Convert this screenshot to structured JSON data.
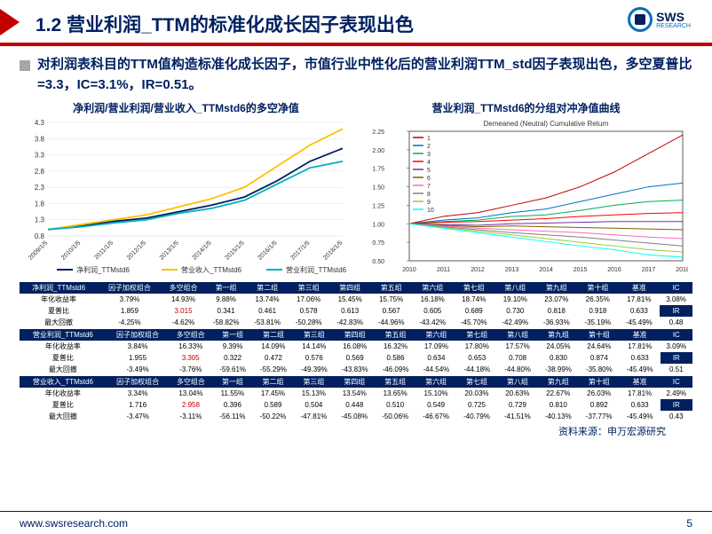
{
  "header": {
    "title": "1.2 营业利润_TTM的标准化成长因子表现出色",
    "logo_main": "SWS",
    "logo_sub": "RESEARCH"
  },
  "bullet": "对利润表科目的TTM值构造标准化成长因子，市值行业中性化后的营业利润TTM_std因子表现出色，多空夏普比=3.3，IC=3.1%，IR=0.51。",
  "chart_left": {
    "title": "净利润/营业利润/营业收入_TTMstd6的多空净值",
    "legend": [
      "净利润_TTMstd6",
      "营业收入_TTMstd6",
      "营业利润_TTMstd6"
    ],
    "legend_colors": [
      "#002060",
      "#ffc000",
      "#00b0c0"
    ],
    "x_labels": [
      "2009/1/5",
      "2010/1/5",
      "2011/1/5",
      "2012/1/5",
      "2013/1/5",
      "2014/1/5",
      "2015/1/5",
      "2016/1/5",
      "2017/1/5",
      "2018/1/5"
    ],
    "y_ticks": [
      0.8,
      1.3,
      1.8,
      2.3,
      2.8,
      3.3,
      3.8,
      4.3
    ],
    "series": [
      {
        "color": "#002060",
        "data": [
          1.0,
          1.1,
          1.25,
          1.35,
          1.55,
          1.75,
          2.0,
          2.5,
          3.1,
          3.5
        ]
      },
      {
        "color": "#ffc000",
        "data": [
          1.0,
          1.15,
          1.3,
          1.45,
          1.7,
          1.95,
          2.3,
          2.95,
          3.6,
          4.1
        ]
      },
      {
        "color": "#00b0c0",
        "data": [
          1.0,
          1.08,
          1.2,
          1.3,
          1.5,
          1.65,
          1.9,
          2.4,
          2.9,
          3.1
        ]
      }
    ]
  },
  "chart_right": {
    "title": "营业利润_TTMstd6的分组对冲净值曲线",
    "legend_title": "Demeaned (Neutral) Cumulative Return",
    "legend_labels": [
      "1",
      "2",
      "3",
      "4",
      "5",
      "6",
      "7",
      "8",
      "9",
      "10"
    ],
    "legend_colors": [
      "#c00000",
      "#0070c0",
      "#00b050",
      "#ff0000",
      "#7030a0",
      "#806000",
      "#ff69b4",
      "#808080",
      "#9acd32",
      "#00ffff"
    ],
    "x_labels": [
      "2010",
      "2011",
      "2012",
      "2013",
      "2014",
      "2015",
      "2016",
      "2017",
      "2018"
    ],
    "y_ticks": [
      0.5,
      0.75,
      1.0,
      1.25,
      1.5,
      1.75,
      2.0,
      2.25
    ],
    "series": [
      {
        "color": "#c00000",
        "data": [
          1.0,
          1.1,
          1.15,
          1.25,
          1.35,
          1.5,
          1.7,
          1.95,
          2.2
        ]
      },
      {
        "color": "#0070c0",
        "data": [
          1.0,
          1.05,
          1.08,
          1.15,
          1.2,
          1.3,
          1.4,
          1.5,
          1.55
        ]
      },
      {
        "color": "#00b050",
        "data": [
          1.0,
          1.03,
          1.05,
          1.1,
          1.12,
          1.18,
          1.25,
          1.3,
          1.32
        ]
      },
      {
        "color": "#ff0000",
        "data": [
          1.0,
          1.02,
          1.03,
          1.05,
          1.07,
          1.1,
          1.12,
          1.14,
          1.15
        ]
      },
      {
        "color": "#7030a0",
        "data": [
          1.0,
          0.99,
          0.98,
          1.0,
          1.01,
          1.02,
          1.03,
          1.03,
          1.03
        ]
      },
      {
        "color": "#806000",
        "data": [
          1.0,
          0.98,
          0.96,
          0.97,
          0.96,
          0.95,
          0.94,
          0.93,
          0.92
        ]
      },
      {
        "color": "#ff69b4",
        "data": [
          1.0,
          0.97,
          0.94,
          0.92,
          0.9,
          0.88,
          0.85,
          0.82,
          0.8
        ]
      },
      {
        "color": "#808080",
        "data": [
          1.0,
          0.96,
          0.92,
          0.88,
          0.85,
          0.82,
          0.78,
          0.74,
          0.7
        ]
      },
      {
        "color": "#9acd32",
        "data": [
          1.0,
          0.95,
          0.9,
          0.85,
          0.8,
          0.75,
          0.7,
          0.65,
          0.62
        ]
      },
      {
        "color": "#00ffff",
        "data": [
          1.0,
          0.94,
          0.88,
          0.82,
          0.76,
          0.7,
          0.65,
          0.58,
          0.55
        ]
      }
    ]
  },
  "tables": [
    {
      "header": [
        "净利润_TTMstd6",
        "因子加权组合",
        "多空组合",
        "第一组",
        "第二组",
        "第三组",
        "第四组",
        "第五组",
        "第六组",
        "第七组",
        "第八组",
        "第九组",
        "第十组",
        "基准",
        "IC"
      ],
      "rows": [
        {
          "label": "年化收益率",
          "cells": [
            "3.79%",
            "14.93%",
            "9.88%",
            "13.74%",
            "17.06%",
            "15.45%",
            "15.75%",
            "16.18%",
            "18.74%",
            "19.10%",
            "23.07%",
            "26.35%",
            "17.81%"
          ],
          "extra": "3.08%",
          "red": []
        },
        {
          "label": "夏普比",
          "cells": [
            "1.859",
            "3.015",
            "0.341",
            "0.461",
            "0.578",
            "0.613",
            "0.567",
            "0.605",
            "0.689",
            "0.730",
            "0.818",
            "0.918",
            "0.633"
          ],
          "extra_label": "IR",
          "red": [
            1
          ]
        },
        {
          "label": "最大回撤",
          "cells": [
            "-4.25%",
            "-4.62%",
            "-58.82%",
            "-53.81%",
            "-50.28%",
            "-42.83%",
            "-44.96%",
            "-43.42%",
            "-45.70%",
            "-42.49%",
            "-36.93%",
            "-35.19%",
            "-45.49%"
          ],
          "extra": "0.48",
          "red": []
        }
      ]
    },
    {
      "header": [
        "营业利润_TTMstd6",
        "因子加权组合",
        "多空组合",
        "第一组",
        "第二组",
        "第三组",
        "第四组",
        "第五组",
        "第六组",
        "第七组",
        "第八组",
        "第九组",
        "第十组",
        "基准",
        "IC"
      ],
      "rows": [
        {
          "label": "年化收益率",
          "cells": [
            "3.84%",
            "16.33%",
            "9.39%",
            "14.09%",
            "14.14%",
            "16.08%",
            "16.32%",
            "17.09%",
            "17.80%",
            "17.57%",
            "24.05%",
            "24.64%",
            "17.81%"
          ],
          "extra": "3.09%",
          "red": []
        },
        {
          "label": "夏普比",
          "cells": [
            "1.955",
            "3.305",
            "0.322",
            "0.472",
            "0.576",
            "0.569",
            "0.586",
            "0.634",
            "0.653",
            "0.708",
            "0.830",
            "0.874",
            "0.633"
          ],
          "extra_label": "IR",
          "red": [
            1
          ]
        },
        {
          "label": "最大回撤",
          "cells": [
            "-3.49%",
            "-3.76%",
            "-59.61%",
            "-55.29%",
            "-49.39%",
            "-43.83%",
            "-46.09%",
            "-44.54%",
            "-44.18%",
            "-44.80%",
            "-38.99%",
            "-35.80%",
            "-45.49%"
          ],
          "extra": "0.51",
          "red": []
        }
      ]
    },
    {
      "header": [
        "营业收入_TTMstd6",
        "因子加权组合",
        "多空组合",
        "第一组",
        "第二组",
        "第三组",
        "第四组",
        "第五组",
        "第六组",
        "第七组",
        "第八组",
        "第九组",
        "第十组",
        "基准",
        "IC"
      ],
      "rows": [
        {
          "label": "年化收益率",
          "cells": [
            "3.34%",
            "13.04%",
            "11.55%",
            "17.45%",
            "15.13%",
            "13.54%",
            "13.65%",
            "15.10%",
            "20.03%",
            "20.63%",
            "22.67%",
            "26.03%",
            "17.81%"
          ],
          "extra": "2.49%",
          "red": []
        },
        {
          "label": "夏普比",
          "cells": [
            "1.716",
            "2.958",
            "0.396",
            "0.589",
            "0.504",
            "0.448",
            "0.510",
            "0.549",
            "0.725",
            "0.729",
            "0.810",
            "0.892",
            "0.633"
          ],
          "extra_label": "IR",
          "red": [
            1
          ]
        },
        {
          "label": "最大回撤",
          "cells": [
            "-3.47%",
            "-3.11%",
            "-56.11%",
            "-50.22%",
            "-47.81%",
            "-45.08%",
            "-50.06%",
            "-46.67%",
            "-40.79%",
            "-41.51%",
            "-40.13%",
            "-37.77%",
            "-45.49%"
          ],
          "extra": "0.43",
          "red": []
        }
      ]
    }
  ],
  "source": "资料来源：申万宏源研究",
  "footer": {
    "url": "www.swsresearch.com",
    "page": "5"
  }
}
